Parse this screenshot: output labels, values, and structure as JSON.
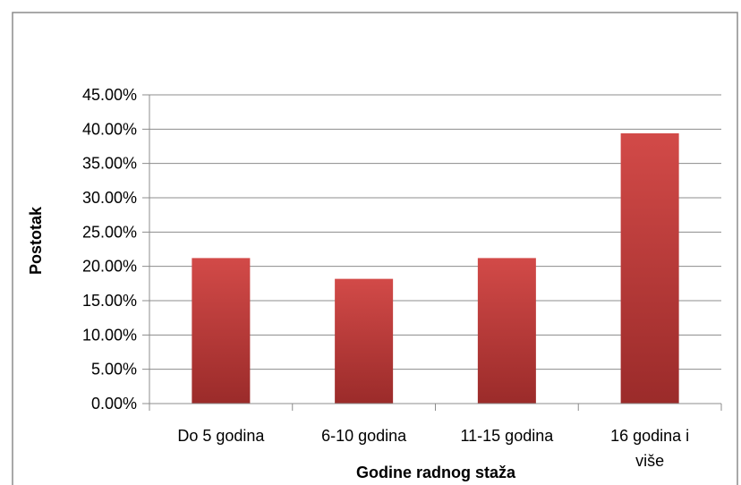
{
  "chart_data": {
    "type": "bar",
    "categories": [
      "Do 5 godina",
      "6-10 godina",
      "11-15 godina",
      "16 godina i više"
    ],
    "values": [
      21.21,
      18.18,
      21.21,
      39.39
    ],
    "ylim": [
      0,
      45
    ],
    "ytick_step": 5,
    "ytick_labels": [
      "0.00%",
      "5.00%",
      "10.00%",
      "15.00%",
      "20.00%",
      "25.00%",
      "30.00%",
      "35.00%",
      "40.00%",
      "45.00%"
    ],
    "xlabel": "Godine radnog staža",
    "ylabel": "Postotak",
    "grid": true,
    "legend": "none",
    "colors": {
      "bar_top": "#d24a48",
      "bar_bottom": "#9b2b2a",
      "grid": "#8c8c8c",
      "frame": "#8c8c8c"
    }
  }
}
